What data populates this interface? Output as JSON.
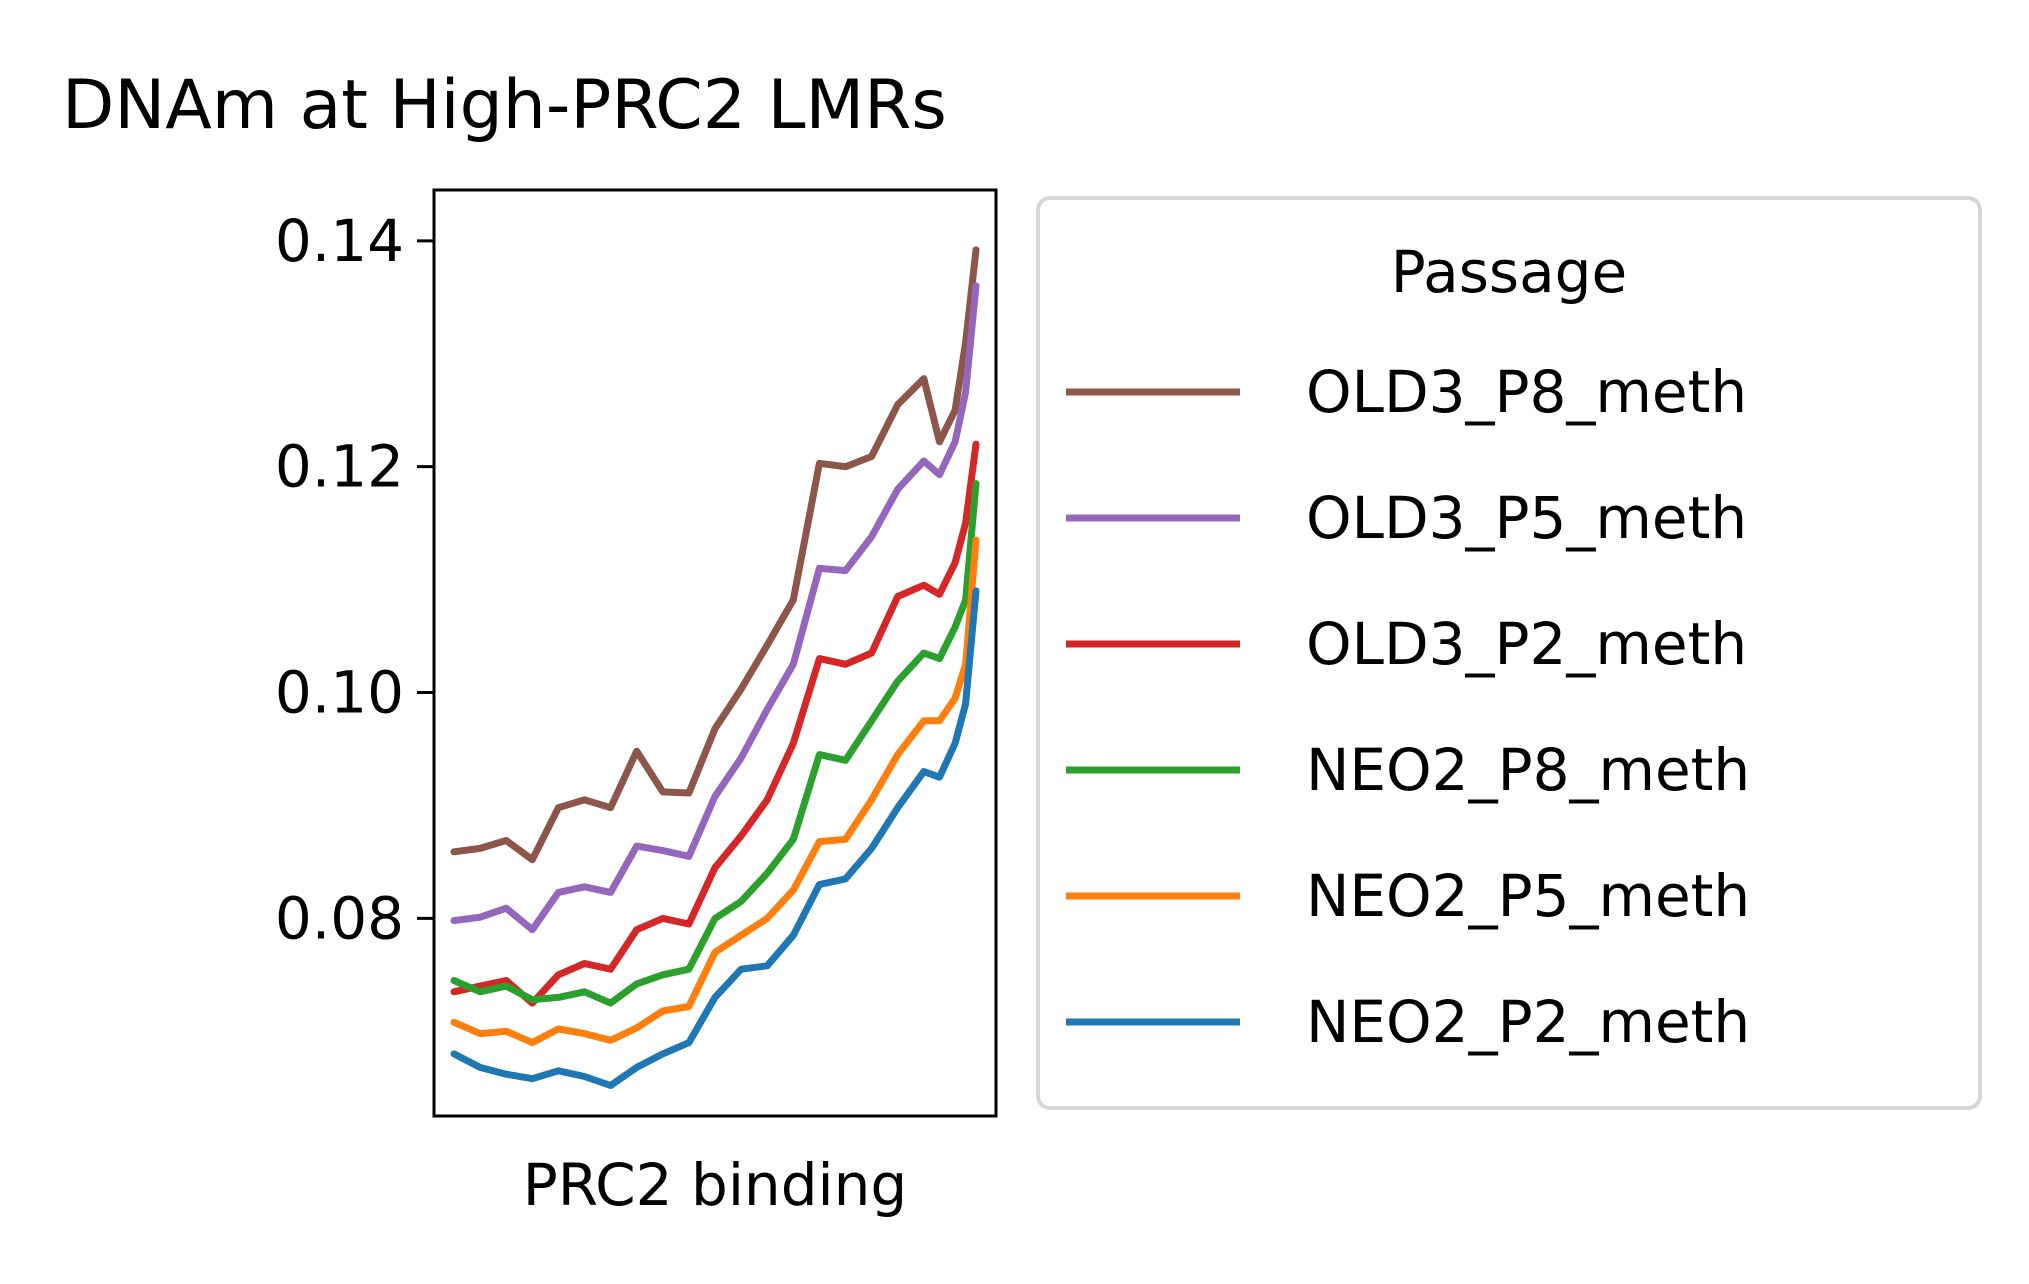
{
  "chart_data": {
    "type": "line",
    "title": "DNAm at High-PRC2 LMRs",
    "xlabel": "PRC2 binding",
    "ylabel": "",
    "ylim": [
      0.0625,
      0.1445
    ],
    "xlim": [
      0,
      1
    ],
    "yticks": [
      0.08,
      0.1,
      0.12,
      0.14
    ],
    "ytick_labels": [
      "0.08",
      "0.10",
      "0.12",
      "0.14"
    ],
    "grid": false,
    "legend": {
      "title": "Passage",
      "placement": "right-outside"
    },
    "series": [
      {
        "name": "OLD3_P8_meth",
        "color": "#8c564b",
        "x": [
          0,
          0.05,
          0.1,
          0.15,
          0.2,
          0.25,
          0.3,
          0.35,
          0.4,
          0.45,
          0.5,
          0.55,
          0.6,
          0.65,
          0.7,
          0.75,
          0.8,
          0.85,
          0.9,
          0.93,
          0.96,
          0.98,
          1.0
        ],
        "y": [
          0.0859,
          0.0862,
          0.0869,
          0.0852,
          0.0898,
          0.0905,
          0.0898,
          0.0948,
          0.0912,
          0.0911,
          0.0968,
          0.1003,
          0.1042,
          0.1082,
          0.1203,
          0.12,
          0.1209,
          0.1255,
          0.1278,
          0.1222,
          0.125,
          0.131,
          0.1392
        ]
      },
      {
        "name": "OLD3_P5_meth",
        "color": "#9467bd",
        "x": [
          0,
          0.05,
          0.1,
          0.15,
          0.2,
          0.25,
          0.3,
          0.35,
          0.4,
          0.45,
          0.5,
          0.55,
          0.6,
          0.65,
          0.7,
          0.75,
          0.8,
          0.85,
          0.9,
          0.93,
          0.96,
          0.98,
          1.0
        ],
        "y": [
          0.0798,
          0.0801,
          0.0809,
          0.079,
          0.0823,
          0.0828,
          0.0823,
          0.0864,
          0.086,
          0.0855,
          0.0908,
          0.0942,
          0.0985,
          0.1025,
          0.111,
          0.1108,
          0.1138,
          0.118,
          0.1205,
          0.1193,
          0.1222,
          0.1266,
          0.136
        ]
      },
      {
        "name": "OLD3_P2_meth",
        "color": "#d62728",
        "x": [
          0,
          0.05,
          0.1,
          0.15,
          0.2,
          0.25,
          0.3,
          0.35,
          0.4,
          0.45,
          0.5,
          0.55,
          0.6,
          0.65,
          0.7,
          0.75,
          0.8,
          0.85,
          0.9,
          0.93,
          0.96,
          0.98,
          1.0
        ],
        "y": [
          0.0735,
          0.074,
          0.0745,
          0.0725,
          0.075,
          0.076,
          0.0755,
          0.079,
          0.08,
          0.0795,
          0.0845,
          0.0873,
          0.0905,
          0.0955,
          0.103,
          0.1025,
          0.1035,
          0.1085,
          0.1095,
          0.1087,
          0.1115,
          0.115,
          0.122
        ]
      },
      {
        "name": "NEO2_P8_meth",
        "color": "#2ca02c",
        "x": [
          0,
          0.05,
          0.1,
          0.15,
          0.2,
          0.25,
          0.3,
          0.35,
          0.4,
          0.45,
          0.5,
          0.55,
          0.6,
          0.65,
          0.7,
          0.75,
          0.8,
          0.85,
          0.9,
          0.93,
          0.96,
          0.98,
          1.0
        ],
        "y": [
          0.0745,
          0.0735,
          0.074,
          0.0728,
          0.073,
          0.0735,
          0.0725,
          0.0742,
          0.075,
          0.0755,
          0.08,
          0.0815,
          0.084,
          0.087,
          0.0945,
          0.094,
          0.0975,
          0.101,
          0.1035,
          0.103,
          0.1058,
          0.1082,
          0.1185
        ]
      },
      {
        "name": "NEO2_P5_meth",
        "color": "#ff7f0e",
        "x": [
          0,
          0.05,
          0.1,
          0.15,
          0.2,
          0.25,
          0.3,
          0.35,
          0.4,
          0.45,
          0.5,
          0.55,
          0.6,
          0.65,
          0.7,
          0.75,
          0.8,
          0.85,
          0.9,
          0.93,
          0.96,
          0.98,
          1.0
        ],
        "y": [
          0.0708,
          0.0698,
          0.07,
          0.069,
          0.0702,
          0.0698,
          0.0692,
          0.0703,
          0.0718,
          0.0722,
          0.077,
          0.0785,
          0.08,
          0.0825,
          0.0868,
          0.087,
          0.0905,
          0.0945,
          0.0975,
          0.0975,
          0.0995,
          0.1025,
          0.1135
        ]
      },
      {
        "name": "NEO2_P2_meth",
        "color": "#1f77b4",
        "x": [
          0,
          0.05,
          0.1,
          0.15,
          0.2,
          0.25,
          0.3,
          0.35,
          0.4,
          0.45,
          0.5,
          0.55,
          0.6,
          0.65,
          0.7,
          0.75,
          0.8,
          0.85,
          0.9,
          0.93,
          0.96,
          0.98,
          1.0
        ],
        "y": [
          0.068,
          0.0668,
          0.0662,
          0.0658,
          0.0665,
          0.066,
          0.0652,
          0.0668,
          0.068,
          0.069,
          0.073,
          0.0755,
          0.0758,
          0.0785,
          0.083,
          0.0835,
          0.0862,
          0.0898,
          0.093,
          0.0925,
          0.0955,
          0.099,
          0.109
        ]
      }
    ]
  }
}
